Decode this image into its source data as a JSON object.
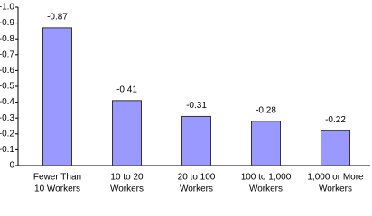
{
  "chart_data": {
    "type": "bar",
    "categories": [
      [
        "Fewer Than",
        "10 Workers"
      ],
      [
        "10 to 20",
        "Workers"
      ],
      [
        "20 to 100",
        "Workers"
      ],
      [
        "100 to 1,000",
        "Workers"
      ],
      [
        "1,000 or More",
        "Workers"
      ]
    ],
    "values": [
      -0.87,
      -0.41,
      -0.31,
      -0.28,
      -0.22
    ],
    "color": "#9999ff",
    "ylim": [
      0,
      -1
    ],
    "yticks": [
      {
        "value": -1,
        "label": "-1.0"
      },
      -0.9,
      -0.8,
      -0.7,
      -0.6,
      -0.5,
      -0.4,
      -0.3,
      -0.2,
      -0.1,
      0
    ],
    "grid": false
  }
}
